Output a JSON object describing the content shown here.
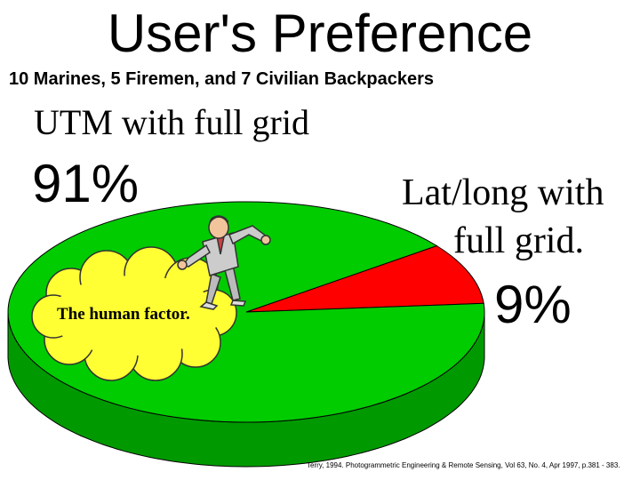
{
  "title": "User's Preference",
  "subtitle": "10 Marines, 5 Firemen, and 7 Civilian Backpackers",
  "chart_data": {
    "type": "pie",
    "title": "User's Preference",
    "subtitle": "10 Marines, 5 Firemen, and 7 Civilian Backpackers",
    "slices": [
      {
        "label": "UTM with full grid",
        "value": 91,
        "value_label": "91%",
        "color": "#00cc00",
        "side_color": "#009a00"
      },
      {
        "label": "Lat/long with full grid.",
        "value": 9,
        "value_label": "9%",
        "color": "#ff0000",
        "side_color": "#c40000"
      }
    ],
    "style": "3d",
    "annotation": "The human factor."
  },
  "labels": {
    "utm": "UTM with full grid",
    "utm_pct": "91%",
    "latlong_line1": "Lat/long with",
    "latlong_line2": "full grid.",
    "latlong_pct": "9%"
  },
  "callout": "The human factor.",
  "citation": "Terry, 1994. Photogrammetric Engineering & Remote Sensing, Vol 63, No. 4, Apr 1997, p.381 - 383."
}
